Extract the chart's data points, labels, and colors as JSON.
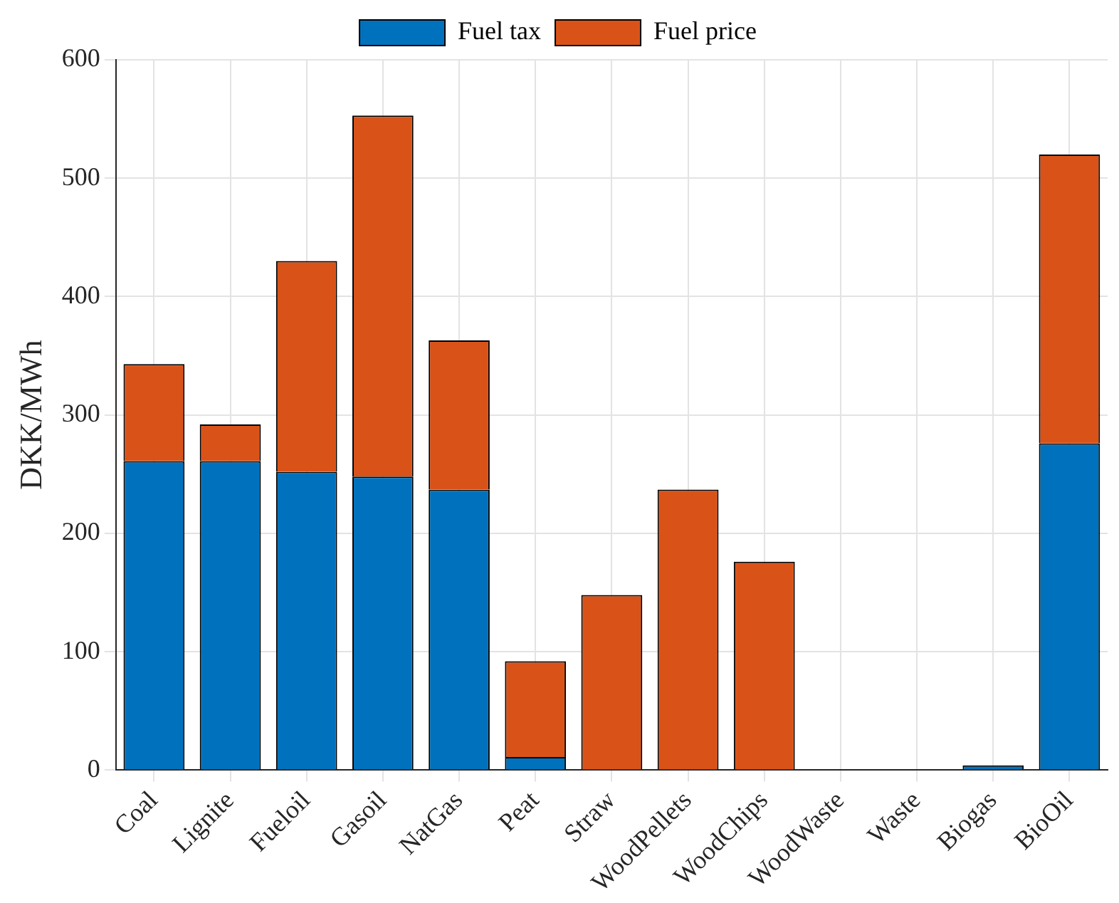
{
  "chart_data": {
    "type": "bar",
    "ylabel": "DKK/MWh",
    "stacked": true,
    "categories": [
      "Coal",
      "Lignite",
      "Fueloil",
      "Gasoil",
      "NatGas",
      "Peat",
      "Straw",
      "WoodPellets",
      "WoodChips",
      "WoodWaste",
      "Waste",
      "Biogas",
      "BioOil"
    ],
    "series": [
      {
        "name": "Fuel tax",
        "color": "#0072bd",
        "values": [
          261,
          261,
          252,
          248,
          237,
          11,
          0,
          0,
          0,
          0,
          0,
          4,
          276
        ]
      },
      {
        "name": "Fuel price",
        "color": "#d95319",
        "values": [
          82,
          31,
          178,
          305,
          126,
          81,
          148,
          237,
          176,
          0,
          0,
          0,
          244
        ]
      }
    ],
    "ylim": [
      0,
      600
    ],
    "yticks": [
      0,
      100,
      200,
      300,
      400,
      500,
      600
    ],
    "grid": true,
    "legend": "top"
  }
}
